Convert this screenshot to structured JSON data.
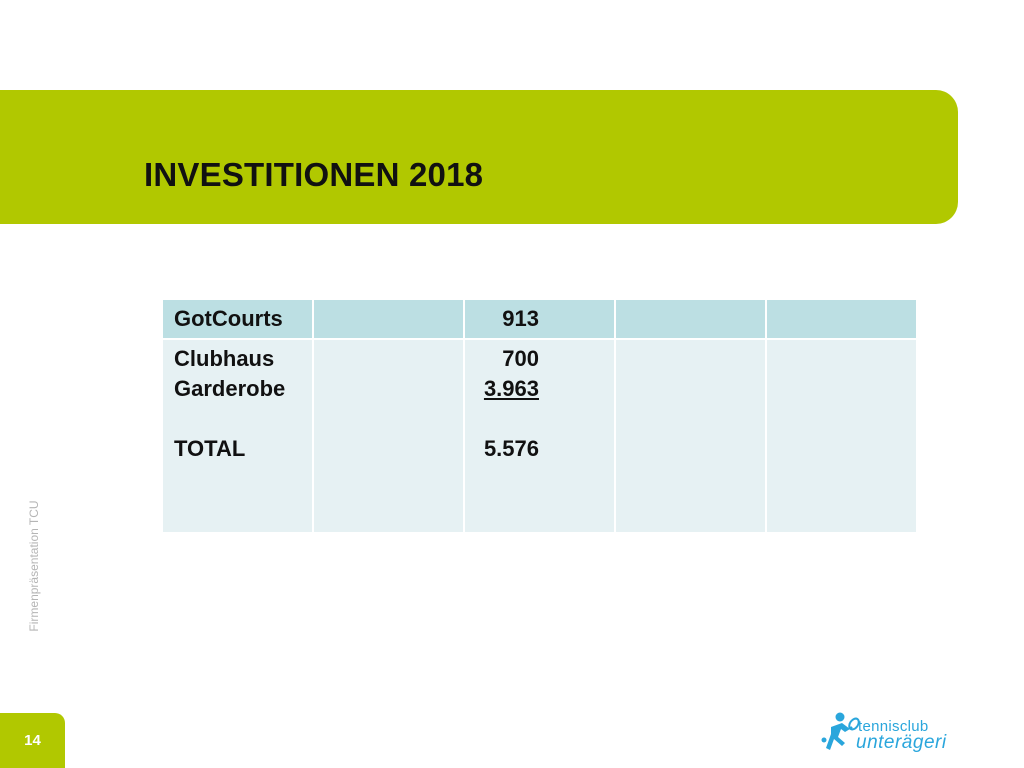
{
  "slide": {
    "title": "INVESTITIONEN 2018",
    "side_label": "Firmenpräsentation TCU",
    "page_number": "14"
  },
  "table": {
    "header": [
      "GotCourts",
      "",
      "913",
      "",
      ""
    ],
    "body": {
      "labels": [
        "Clubhaus",
        "Garderobe",
        "TOTAL"
      ],
      "values": [
        "700",
        "3.963",
        "5.576"
      ]
    }
  },
  "logo": {
    "line1": "tennisclub",
    "line2": "unterägeri",
    "icon": "tennis-player-icon"
  },
  "colors": {
    "accent_green": "#b1c800",
    "header_cell": "#bcdfe3",
    "body_cell": "#e6f1f3",
    "logo_blue": "#2aa6dc"
  }
}
